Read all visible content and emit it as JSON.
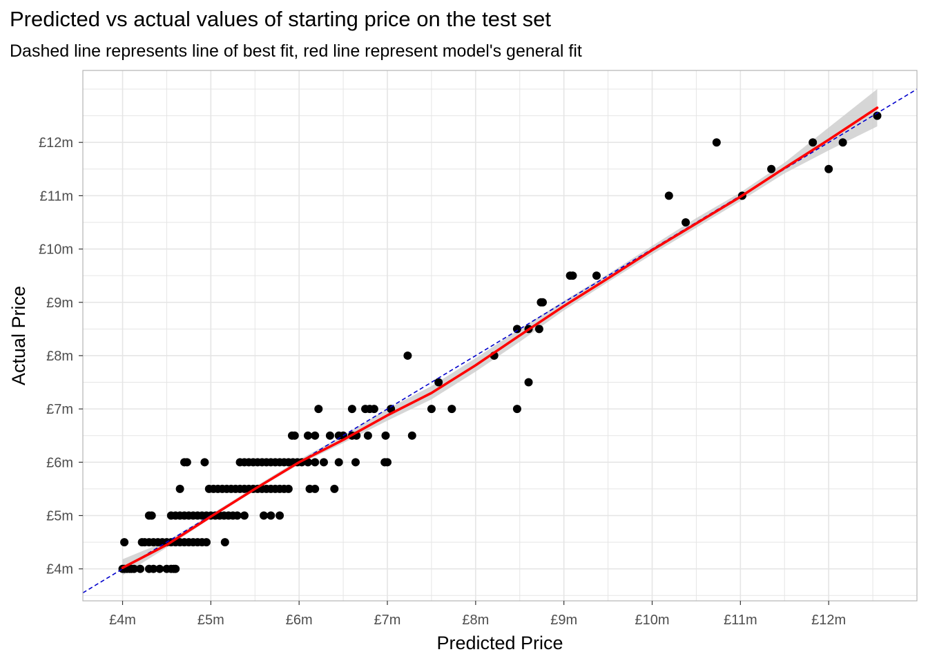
{
  "chart_data": {
    "type": "scatter",
    "title": "Predicted vs actual values of starting price on the test set",
    "subtitle": "Dashed line represents line of best fit, red line represent model's general fit",
    "xlabel": "Predicted Price",
    "ylabel": "Actual Price",
    "xlim": [
      3.55,
      13.0
    ],
    "ylim": [
      3.4,
      13.35
    ],
    "x_ticks": [
      4,
      5,
      6,
      7,
      8,
      9,
      10,
      11,
      12
    ],
    "x_tick_labels": [
      "£4m",
      "£5m",
      "£6m",
      "£7m",
      "£8m",
      "£9m",
      "£10m",
      "£11m",
      "£12m"
    ],
    "y_ticks": [
      4,
      5,
      6,
      7,
      8,
      9,
      10,
      11,
      12
    ],
    "y_tick_labels": [
      "£4m",
      "£5m",
      "£6m",
      "£7m",
      "£8m",
      "£9m",
      "£10m",
      "£11m",
      "£12m"
    ],
    "grid": true,
    "colors": {
      "points": "#000000",
      "reference_line": "#0000cc",
      "smooth_line": "#ff0000",
      "ribbon": "#cccccc",
      "grid": "#e5e5e5",
      "panel_border": "#b3b3b3"
    },
    "points": [
      [
        4.0,
        4.0
      ],
      [
        4.02,
        4.0
      ],
      [
        4.05,
        4.0
      ],
      [
        4.08,
        4.0
      ],
      [
        4.1,
        4.0
      ],
      [
        4.13,
        4.0
      ],
      [
        4.2,
        4.0
      ],
      [
        4.3,
        4.0
      ],
      [
        4.35,
        4.0
      ],
      [
        4.42,
        4.0
      ],
      [
        4.5,
        4.0
      ],
      [
        4.55,
        4.0
      ],
      [
        4.58,
        4.0
      ],
      [
        4.6,
        4.0
      ],
      [
        4.02,
        4.5
      ],
      [
        4.22,
        4.5
      ],
      [
        4.25,
        4.5
      ],
      [
        4.3,
        4.5
      ],
      [
        4.35,
        4.5
      ],
      [
        4.4,
        4.5
      ],
      [
        4.45,
        4.5
      ],
      [
        4.5,
        4.5
      ],
      [
        4.55,
        4.5
      ],
      [
        4.6,
        4.5
      ],
      [
        4.65,
        4.5
      ],
      [
        4.7,
        4.5
      ],
      [
        4.75,
        4.5
      ],
      [
        4.8,
        4.5
      ],
      [
        4.85,
        4.5
      ],
      [
        4.9,
        4.5
      ],
      [
        4.95,
        4.5
      ],
      [
        5.16,
        4.5
      ],
      [
        4.3,
        5.0
      ],
      [
        4.33,
        5.0
      ],
      [
        4.55,
        5.0
      ],
      [
        4.6,
        5.0
      ],
      [
        4.65,
        5.0
      ],
      [
        4.7,
        5.0
      ],
      [
        4.75,
        5.0
      ],
      [
        4.8,
        5.0
      ],
      [
        4.85,
        5.0
      ],
      [
        4.9,
        5.0
      ],
      [
        4.95,
        5.0
      ],
      [
        5.0,
        5.0
      ],
      [
        5.05,
        5.0
      ],
      [
        5.1,
        5.0
      ],
      [
        5.15,
        5.0
      ],
      [
        5.2,
        5.0
      ],
      [
        5.25,
        5.0
      ],
      [
        5.3,
        5.0
      ],
      [
        5.38,
        5.0
      ],
      [
        5.6,
        5.0
      ],
      [
        5.68,
        5.0
      ],
      [
        5.78,
        5.0
      ],
      [
        4.65,
        5.5
      ],
      [
        4.98,
        5.5
      ],
      [
        5.03,
        5.5
      ],
      [
        5.08,
        5.5
      ],
      [
        5.13,
        5.5
      ],
      [
        5.18,
        5.5
      ],
      [
        5.23,
        5.5
      ],
      [
        5.28,
        5.5
      ],
      [
        5.33,
        5.5
      ],
      [
        5.38,
        5.5
      ],
      [
        5.43,
        5.5
      ],
      [
        5.48,
        5.5
      ],
      [
        5.53,
        5.5
      ],
      [
        5.58,
        5.5
      ],
      [
        5.63,
        5.5
      ],
      [
        5.68,
        5.5
      ],
      [
        5.73,
        5.5
      ],
      [
        5.78,
        5.5
      ],
      [
        5.83,
        5.5
      ],
      [
        5.88,
        5.5
      ],
      [
        6.12,
        5.5
      ],
      [
        6.18,
        5.5
      ],
      [
        6.4,
        5.5
      ],
      [
        4.7,
        6.0
      ],
      [
        4.73,
        6.0
      ],
      [
        4.93,
        6.0
      ],
      [
        5.33,
        6.0
      ],
      [
        5.38,
        6.0
      ],
      [
        5.43,
        6.0
      ],
      [
        5.48,
        6.0
      ],
      [
        5.53,
        6.0
      ],
      [
        5.58,
        6.0
      ],
      [
        5.63,
        6.0
      ],
      [
        5.68,
        6.0
      ],
      [
        5.73,
        6.0
      ],
      [
        5.78,
        6.0
      ],
      [
        5.83,
        6.0
      ],
      [
        5.88,
        6.0
      ],
      [
        5.93,
        6.0
      ],
      [
        5.98,
        6.0
      ],
      [
        6.03,
        6.0
      ],
      [
        6.1,
        6.0
      ],
      [
        6.18,
        6.0
      ],
      [
        6.28,
        6.0
      ],
      [
        6.45,
        6.0
      ],
      [
        6.64,
        6.0
      ],
      [
        6.97,
        6.0
      ],
      [
        7.0,
        6.0
      ],
      [
        5.92,
        6.5
      ],
      [
        5.95,
        6.5
      ],
      [
        6.1,
        6.5
      ],
      [
        6.18,
        6.5
      ],
      [
        6.35,
        6.5
      ],
      [
        6.45,
        6.5
      ],
      [
        6.5,
        6.5
      ],
      [
        6.6,
        6.5
      ],
      [
        6.65,
        6.5
      ],
      [
        6.78,
        6.5
      ],
      [
        6.98,
        6.5
      ],
      [
        7.28,
        6.5
      ],
      [
        6.22,
        7.0
      ],
      [
        6.6,
        7.0
      ],
      [
        6.75,
        7.0
      ],
      [
        6.8,
        7.0
      ],
      [
        6.85,
        7.0
      ],
      [
        7.04,
        7.0
      ],
      [
        7.5,
        7.0
      ],
      [
        7.73,
        7.0
      ],
      [
        8.47,
        7.0
      ],
      [
        7.58,
        7.5
      ],
      [
        8.6,
        7.5
      ],
      [
        7.23,
        8.0
      ],
      [
        8.21,
        8.0
      ],
      [
        8.47,
        8.5
      ],
      [
        8.6,
        8.5
      ],
      [
        8.72,
        8.5
      ],
      [
        8.74,
        9.0
      ],
      [
        8.76,
        9.0
      ],
      [
        9.07,
        9.5
      ],
      [
        9.1,
        9.5
      ],
      [
        9.37,
        9.5
      ],
      [
        10.38,
        10.5
      ],
      [
        10.19,
        11.0
      ],
      [
        11.02,
        11.0
      ],
      [
        11.35,
        11.5
      ],
      [
        12.0,
        11.5
      ],
      [
        10.73,
        12.0
      ],
      [
        11.82,
        12.0
      ],
      [
        12.16,
        12.0
      ],
      [
        12.55,
        12.5
      ]
    ],
    "reference_line": {
      "type": "dashed",
      "slope": 1,
      "intercept": 0
    },
    "smooth_line": [
      [
        4.0,
        4.02
      ],
      [
        4.5,
        4.45
      ],
      [
        5.0,
        4.98
      ],
      [
        5.5,
        5.5
      ],
      [
        6.0,
        6.0
      ],
      [
        6.5,
        6.42
      ],
      [
        7.0,
        6.88
      ],
      [
        7.5,
        7.3
      ],
      [
        8.0,
        7.82
      ],
      [
        8.5,
        8.38
      ],
      [
        9.0,
        8.93
      ],
      [
        9.5,
        9.45
      ],
      [
        10.0,
        9.98
      ],
      [
        10.5,
        10.48
      ],
      [
        11.0,
        10.98
      ],
      [
        11.5,
        11.52
      ],
      [
        12.0,
        12.05
      ],
      [
        12.55,
        12.65
      ]
    ],
    "ribbon": [
      [
        4.0,
        3.88,
        4.18
      ],
      [
        4.5,
        4.4,
        4.52
      ],
      [
        5.0,
        4.95,
        5.02
      ],
      [
        5.5,
        5.47,
        5.54
      ],
      [
        6.0,
        5.96,
        6.05
      ],
      [
        6.5,
        6.36,
        6.5
      ],
      [
        7.0,
        6.78,
        7.0
      ],
      [
        7.5,
        7.18,
        7.43
      ],
      [
        8.0,
        7.7,
        7.95
      ],
      [
        8.5,
        8.26,
        8.5
      ],
      [
        9.0,
        8.85,
        9.03
      ],
      [
        9.5,
        9.38,
        9.53
      ],
      [
        10.0,
        9.9,
        10.06
      ],
      [
        10.5,
        10.4,
        10.58
      ],
      [
        11.0,
        10.9,
        11.06
      ],
      [
        11.5,
        11.42,
        11.62
      ],
      [
        12.0,
        11.85,
        12.28
      ],
      [
        12.55,
        12.3,
        13.0
      ]
    ]
  }
}
